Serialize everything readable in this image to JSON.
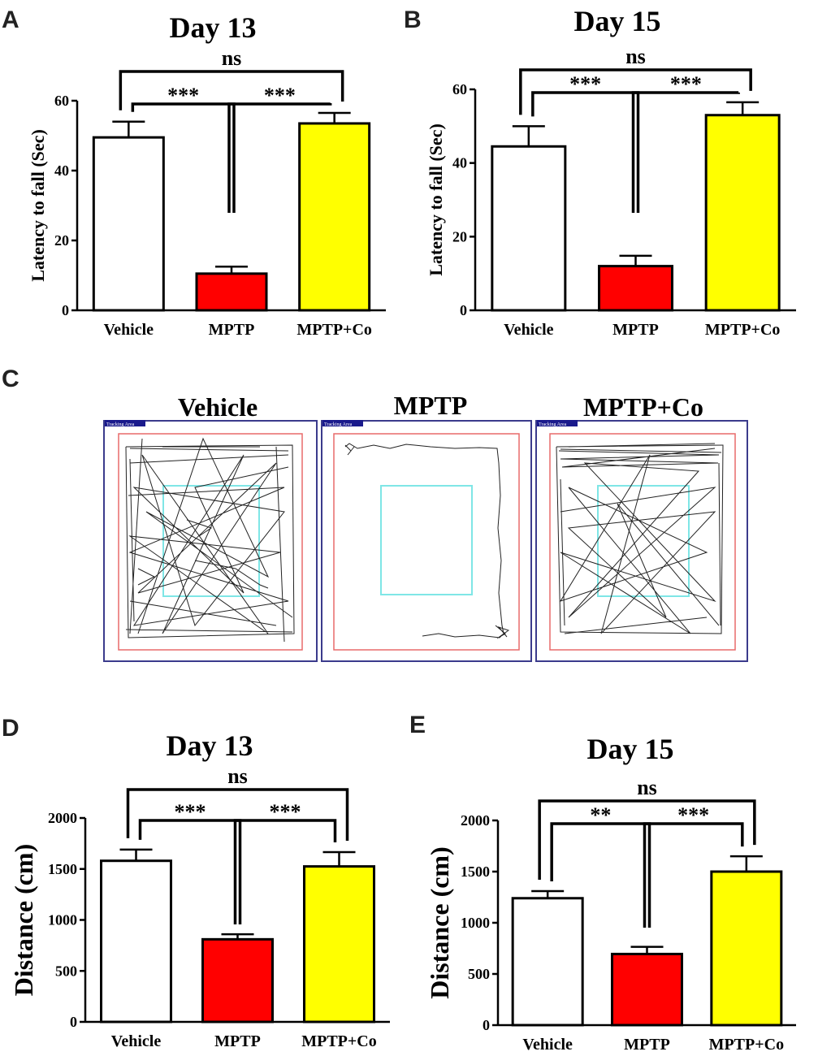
{
  "panels": {
    "a": "A",
    "b": "B",
    "c": "C",
    "d": "D",
    "e": "E"
  },
  "chart_data": [
    {
      "id": "A",
      "type": "bar",
      "title": "Day 13",
      "categories": [
        "Vehicle",
        "MPTP",
        "MPTP+Co"
      ],
      "values": [
        49.5,
        10.5,
        53.5
      ],
      "errors": [
        4.5,
        2.0,
        3.0
      ],
      "colors": [
        "#ffffff",
        "#ff0000",
        "#ffff00"
      ],
      "ylabel": "Latency to fall (Sec)",
      "ylim": [
        0,
        60
      ],
      "yticks": [
        "0",
        "20",
        "40",
        "60"
      ],
      "significance": [
        {
          "pair": [
            0,
            1
          ],
          "label": "***"
        },
        {
          "pair": [
            1,
            2
          ],
          "label": "***"
        },
        {
          "pair": [
            0,
            2
          ],
          "label": "ns"
        }
      ]
    },
    {
      "id": "B",
      "type": "bar",
      "title": "Day 15",
      "categories": [
        "Vehicle",
        "MPTP",
        "MPTP+Co"
      ],
      "values": [
        44.5,
        12.0,
        53.0
      ],
      "errors": [
        5.5,
        2.8,
        3.5
      ],
      "colors": [
        "#ffffff",
        "#ff0000",
        "#ffff00"
      ],
      "ylabel": "Latency to fall (Sec)",
      "ylim": [
        0,
        60
      ],
      "yticks": [
        "0",
        "20",
        "40",
        "60"
      ],
      "significance": [
        {
          "pair": [
            0,
            1
          ],
          "label": "***"
        },
        {
          "pair": [
            1,
            2
          ],
          "label": "***"
        },
        {
          "pair": [
            0,
            2
          ],
          "label": "ns"
        }
      ]
    },
    {
      "id": "D",
      "type": "bar",
      "title": "Day 13",
      "categories": [
        "Vehicle",
        "MPTP",
        "MPTP+Co"
      ],
      "values": [
        1580,
        810,
        1525
      ],
      "errors": [
        110,
        50,
        140
      ],
      "colors": [
        "#ffffff",
        "#ff0000",
        "#ffff00"
      ],
      "ylabel": "Distance (cm)",
      "ylim": [
        0,
        2000
      ],
      "yticks": [
        "0",
        "500",
        "1000",
        "1500",
        "2000"
      ],
      "significance": [
        {
          "pair": [
            0,
            1
          ],
          "label": "***"
        },
        {
          "pair": [
            1,
            2
          ],
          "label": "***"
        },
        {
          "pair": [
            0,
            2
          ],
          "label": "ns"
        }
      ]
    },
    {
      "id": "E",
      "type": "bar",
      "title": "Day 15",
      "categories": [
        "Vehicle",
        "MPTP",
        "MPTP+Co"
      ],
      "values": [
        1240,
        695,
        1500
      ],
      "errors": [
        70,
        70,
        150
      ],
      "colors": [
        "#ffffff",
        "#ff0000",
        "#ffff00"
      ],
      "ylabel": "Distance (cm)",
      "ylim": [
        0,
        2000
      ],
      "yticks": [
        "0",
        "500",
        "1000",
        "1500",
        "2000"
      ],
      "significance": [
        {
          "pair": [
            0,
            1
          ],
          "label": "**"
        },
        {
          "pair": [
            1,
            2
          ],
          "label": "***"
        },
        {
          "pair": [
            0,
            2
          ],
          "label": "ns"
        }
      ]
    }
  ],
  "tracking": {
    "area_label": "Tracking Area",
    "titles": [
      "Vehicle",
      "MPTP",
      "MPTP+Co"
    ],
    "colors": {
      "outer": "#3b3b8c",
      "border": "#e86a6a",
      "center": "#7fe6e6",
      "path": "#222222"
    }
  }
}
